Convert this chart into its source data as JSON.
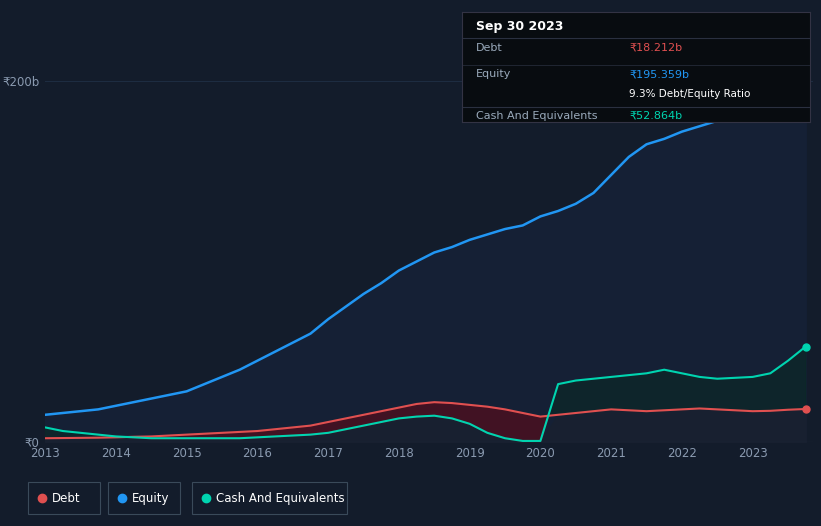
{
  "background_color": "#131c2b",
  "plot_bg_color": "#131c2b",
  "grid_color": "#1e2d42",
  "title_box_text": "Sep 30 2023",
  "tooltip": {
    "debt_label": "Debt",
    "debt_value": "₹18.212b",
    "equity_label": "Equity",
    "equity_value": "₹195.359b",
    "ratio_text": "9.3% Debt/Equity Ratio",
    "cash_label": "Cash And Equivalents",
    "cash_value": "₹52.864b"
  },
  "years": [
    2013.0,
    2013.25,
    2013.5,
    2013.75,
    2014.0,
    2014.25,
    2014.5,
    2014.75,
    2015.0,
    2015.25,
    2015.5,
    2015.75,
    2016.0,
    2016.25,
    2016.5,
    2016.75,
    2017.0,
    2017.25,
    2017.5,
    2017.75,
    2018.0,
    2018.25,
    2018.5,
    2018.75,
    2019.0,
    2019.25,
    2019.5,
    2019.75,
    2020.0,
    2020.25,
    2020.5,
    2020.75,
    2021.0,
    2021.25,
    2021.5,
    2021.75,
    2022.0,
    2022.25,
    2022.5,
    2022.75,
    2023.0,
    2023.25,
    2023.5,
    2023.75
  ],
  "equity": [
    15,
    16,
    17,
    18,
    20,
    22,
    24,
    26,
    28,
    32,
    36,
    40,
    45,
    50,
    55,
    60,
    68,
    75,
    82,
    88,
    95,
    100,
    105,
    108,
    112,
    115,
    118,
    120,
    125,
    128,
    132,
    138,
    148,
    158,
    165,
    168,
    172,
    175,
    178,
    182,
    186,
    188,
    191,
    195
  ],
  "debt": [
    2.0,
    2.1,
    2.2,
    2.3,
    2.5,
    2.8,
    3.0,
    3.5,
    4.0,
    4.5,
    5.0,
    5.5,
    6.0,
    7.0,
    8.0,
    9.0,
    11.0,
    13.0,
    15.0,
    17.0,
    19.0,
    21.0,
    22.0,
    21.5,
    20.5,
    19.5,
    18.0,
    16.0,
    14.0,
    15.0,
    16.0,
    17.0,
    18.0,
    17.5,
    17.0,
    17.5,
    18.0,
    18.5,
    18.0,
    17.5,
    17.0,
    17.2,
    17.8,
    18.212
  ],
  "cash": [
    8.0,
    6.0,
    5.0,
    4.0,
    3.0,
    2.5,
    2.0,
    2.0,
    2.0,
    2.0,
    2.0,
    2.0,
    2.5,
    3.0,
    3.5,
    4.0,
    5.0,
    7.0,
    9.0,
    11.0,
    13.0,
    14.0,
    14.5,
    13.0,
    10.0,
    5.0,
    2.0,
    0.5,
    0.5,
    32.0,
    34.0,
    35.0,
    36.0,
    37.0,
    38.0,
    40.0,
    38.0,
    36.0,
    35.0,
    35.5,
    36.0,
    38.0,
    45.0,
    52.864
  ],
  "equity_color": "#2196f3",
  "debt_color": "#e05050",
  "cash_color": "#00d4b0",
  "ylim_min": 0,
  "ylim_max": 210,
  "xticks": [
    2013,
    2014,
    2015,
    2016,
    2017,
    2018,
    2019,
    2020,
    2021,
    2022,
    2023
  ],
  "legend_items": [
    {
      "label": "Debt",
      "color": "#e05050"
    },
    {
      "label": "Equity",
      "color": "#2196f3"
    },
    {
      "label": "Cash And Equivalents",
      "color": "#00d4b0"
    }
  ]
}
